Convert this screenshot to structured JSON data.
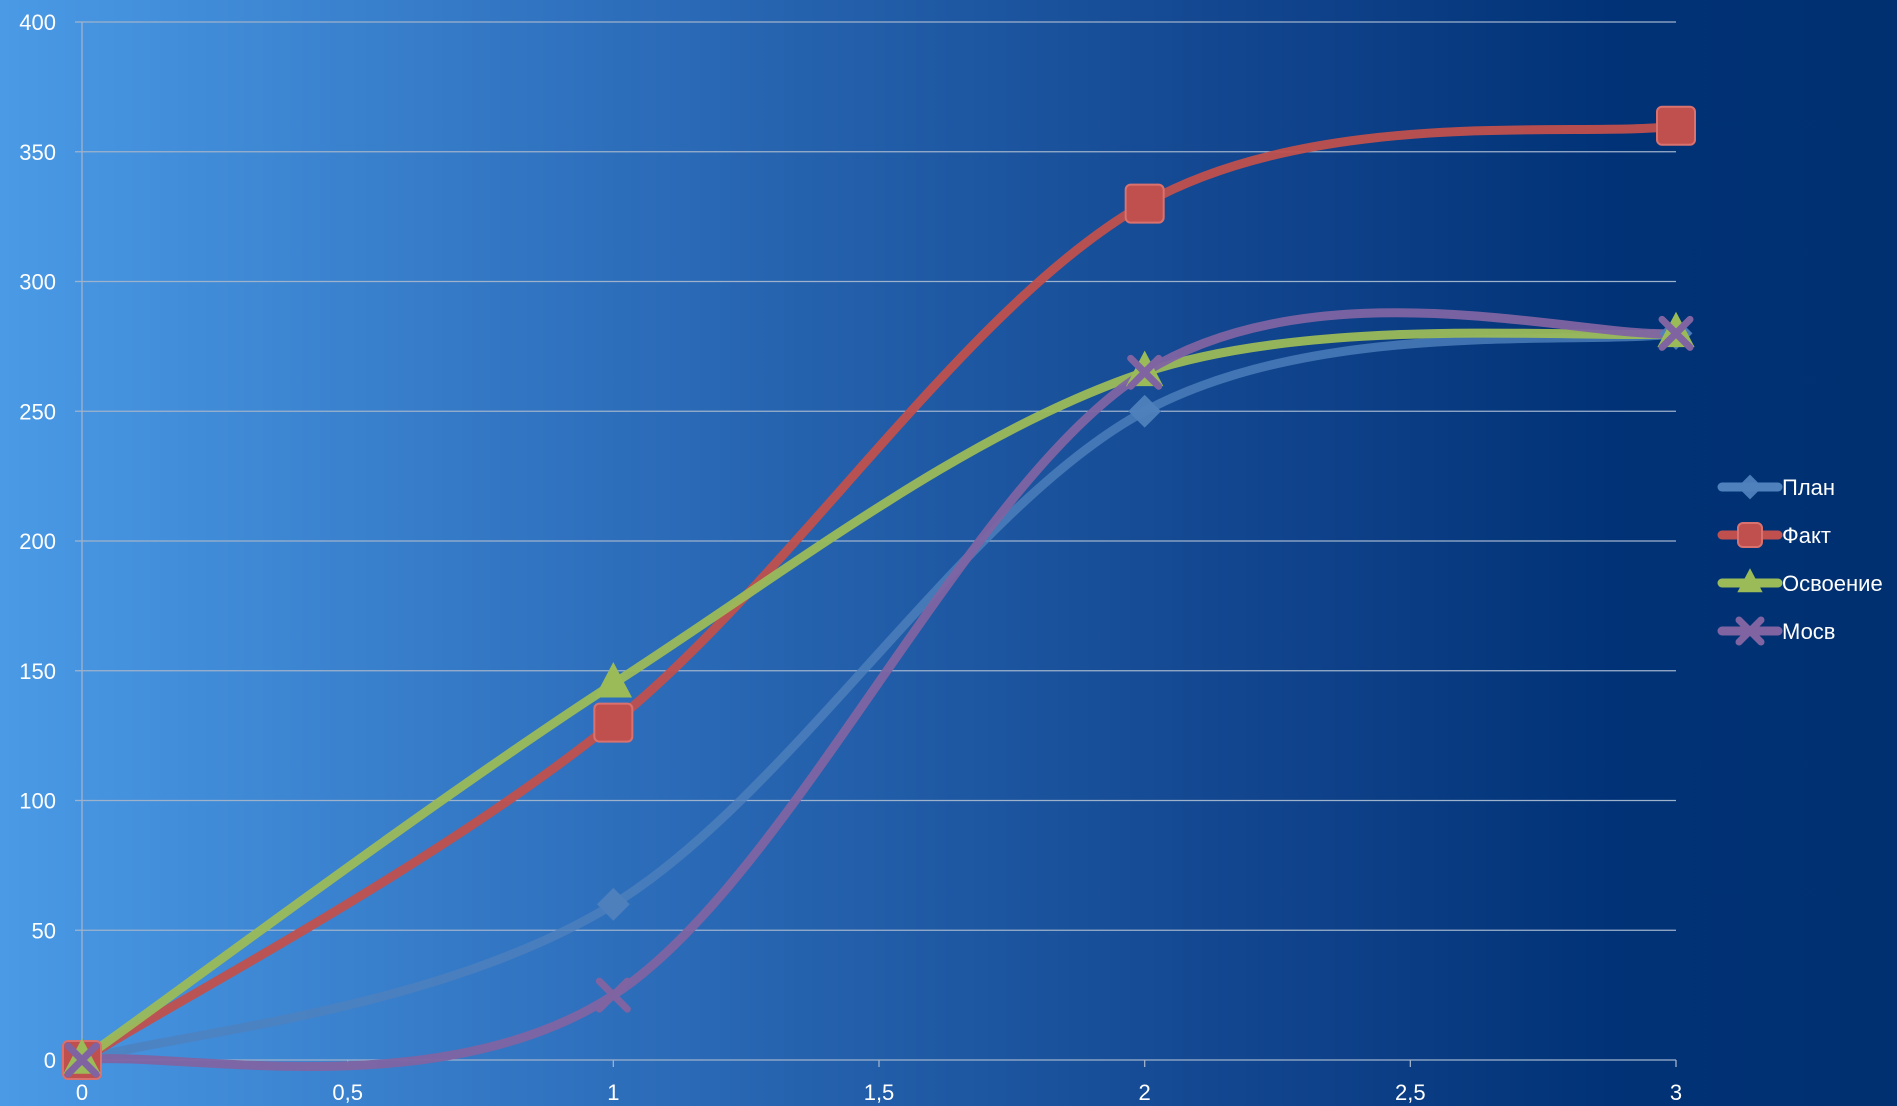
{
  "chart_data": {
    "type": "scatter",
    "title": "",
    "xlabel": "",
    "ylabel": "",
    "xlim": [
      0,
      3
    ],
    "ylim": [
      0,
      400
    ],
    "x_ticks": [
      0,
      0.5,
      1,
      1.5,
      2,
      2.5,
      3
    ],
    "x_tick_labels": [
      "0",
      "0,5",
      "1",
      "1,5",
      "2",
      "2,5",
      "3"
    ],
    "y_ticks": [
      0,
      50,
      100,
      150,
      200,
      250,
      300,
      350,
      400
    ],
    "y_tick_labels": [
      "0",
      "50",
      "100",
      "150",
      "200",
      "250",
      "300",
      "350",
      "400"
    ],
    "grid": true,
    "smooth_lines": true,
    "legend_position": "right",
    "series": [
      {
        "name": "План",
        "color": "#4f81bd",
        "marker": "diamond",
        "x": [
          0,
          1,
          2,
          3
        ],
        "y": [
          0,
          60,
          250,
          280
        ]
      },
      {
        "name": "Факт",
        "color": "#c0504d",
        "marker": "square",
        "x": [
          0,
          1,
          2,
          3
        ],
        "y": [
          0,
          130,
          330,
          360
        ]
      },
      {
        "name": "Освоение",
        "color": "#9bbb59",
        "marker": "triangle",
        "x": [
          0,
          1,
          2,
          3
        ],
        "y": [
          0,
          145,
          265,
          280
        ]
      },
      {
        "name": "Мосв",
        "color": "#8064a2",
        "marker": "x",
        "x": [
          0,
          1,
          2,
          3
        ],
        "y": [
          0,
          25,
          265,
          280
        ]
      }
    ]
  }
}
